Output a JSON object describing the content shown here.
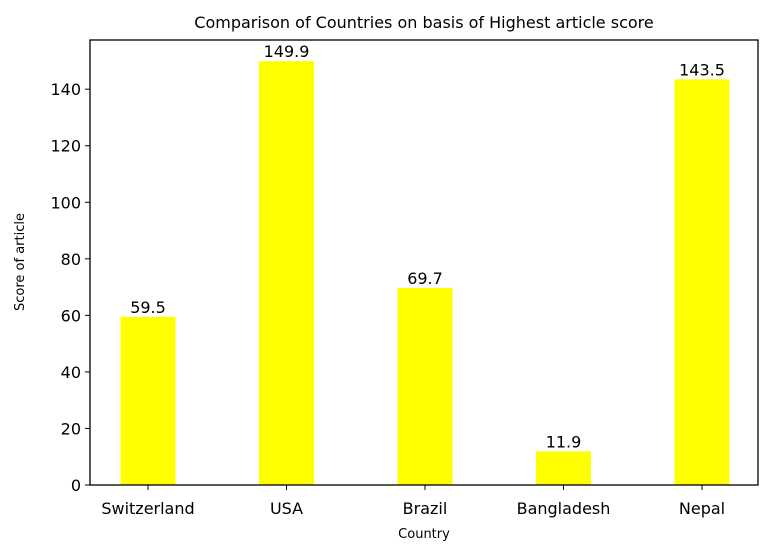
{
  "chart_data": {
    "type": "bar",
    "title": "Comparison of Countries on basis of Highest article score",
    "xlabel": "Country",
    "ylabel": "Score of article",
    "categories": [
      "Switzerland",
      "USA",
      "Brazil",
      "Bangladesh",
      "Nepal"
    ],
    "values": [
      59.5,
      149.9,
      69.7,
      11.9,
      143.5
    ],
    "data_labels": [
      "59.5",
      "149.9",
      "69.7",
      "11.9",
      "143.5"
    ],
    "yticks": [
      0,
      20,
      40,
      60,
      80,
      100,
      120,
      140
    ],
    "ylim": [
      0,
      157.4
    ],
    "grid": false,
    "legend": "none",
    "bar_color": "#ffff00"
  }
}
